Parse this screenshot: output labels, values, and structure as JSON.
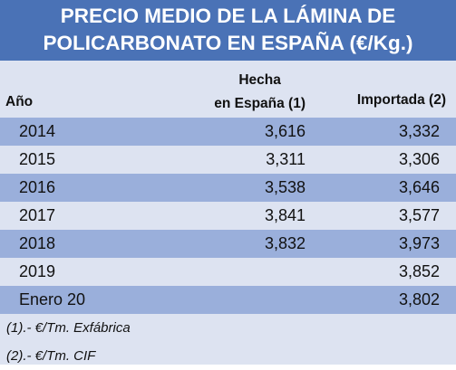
{
  "title": {
    "line1": "PRECIO MEDIO DE LA LÁMINA DE",
    "line2": "POLICARBONATO EN ESPAÑA (€/Kg.)"
  },
  "headers": {
    "year": "Año",
    "spain_line1": "Hecha",
    "spain_line2": "en España (1)",
    "imported": "Importada (2)"
  },
  "rows": [
    {
      "year": "2014",
      "spain": "3,616",
      "imported": "3,332"
    },
    {
      "year": "2015",
      "spain": "3,311",
      "imported": "3,306"
    },
    {
      "year": "2016",
      "spain": "3,538",
      "imported": "3,646"
    },
    {
      "year": "2017",
      "spain": "3,841",
      "imported": "3,577"
    },
    {
      "year": "2018",
      "spain": "3,832",
      "imported": "3,973"
    },
    {
      "year": "2019",
      "spain": "",
      "imported": "3,852"
    },
    {
      "year": "Enero 20",
      "spain": "",
      "imported": "3,802"
    }
  ],
  "notes": [
    "(1).- €/Tm. Exfábrica",
    "(2).- €/Tm. CIF"
  ],
  "colors": {
    "title_bg": "#4a72b6",
    "band_dark": "#9aafdb",
    "band_light": "#dde3f1"
  }
}
